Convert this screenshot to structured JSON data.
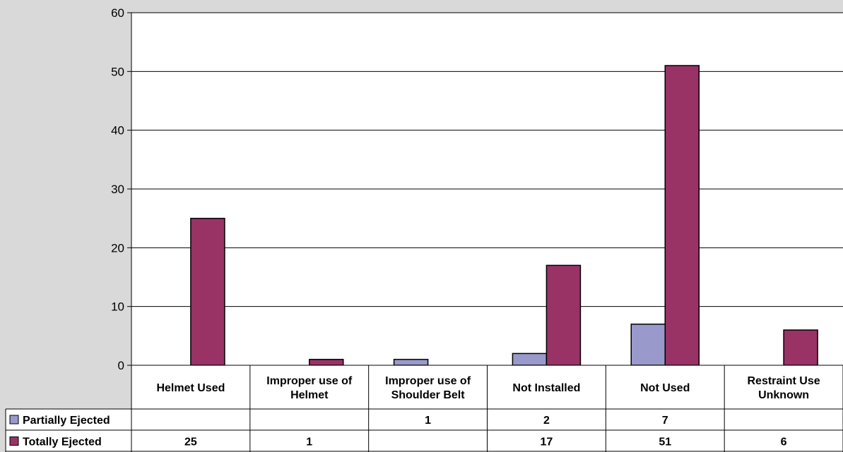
{
  "chart_data": {
    "type": "bar",
    "categories": [
      [
        "Helmet Used"
      ],
      [
        "Improper use of",
        "Helmet"
      ],
      [
        "Improper use of",
        "Shoulder Belt"
      ],
      [
        "Not Installed"
      ],
      [
        "Not Used"
      ],
      [
        "Restraint Use",
        "Unknown"
      ]
    ],
    "series": [
      {
        "name": "Partially Ejected",
        "values": [
          null,
          null,
          1,
          2,
          7,
          null
        ],
        "labels": [
          "",
          "",
          "1",
          "2",
          "7",
          ""
        ],
        "color": "#9999cc"
      },
      {
        "name": "Totally Ejected",
        "values": [
          25,
          1,
          null,
          17,
          51,
          6
        ],
        "labels": [
          "25",
          "1",
          "",
          "17",
          "51",
          "6"
        ],
        "color": "#993366"
      }
    ],
    "ylim": [
      0,
      60
    ],
    "yticks": [
      0,
      10,
      20,
      30,
      40,
      50,
      60
    ],
    "grid": true,
    "legend": "data-table",
    "colors": {
      "plot_bg": "#ffffff",
      "page_bg": "#d9d9d9",
      "axis": "#000000",
      "grid": "#000000"
    }
  }
}
